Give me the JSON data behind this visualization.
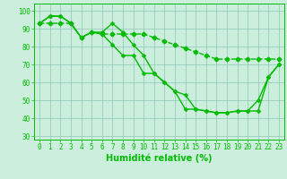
{
  "xlabel": "Humidité relative (%)",
  "xlim": [
    -0.5,
    23.5
  ],
  "ylim": [
    28,
    104
  ],
  "yticks": [
    30,
    40,
    50,
    60,
    70,
    80,
    90,
    100
  ],
  "xticks": [
    0,
    1,
    2,
    3,
    4,
    5,
    6,
    7,
    8,
    9,
    10,
    11,
    12,
    13,
    14,
    15,
    16,
    17,
    18,
    19,
    20,
    21,
    22,
    23
  ],
  "background_color": "#cceedd",
  "grid_color": "#99ccbb",
  "line_color": "#00bb00",
  "line1": [
    93,
    97,
    97,
    93,
    85,
    88,
    88,
    93,
    88,
    81,
    75,
    65,
    60,
    55,
    53,
    45,
    44,
    43,
    43,
    44,
    44,
    44,
    63,
    70
  ],
  "line2": [
    93,
    97,
    97,
    93,
    85,
    88,
    87,
    81,
    75,
    75,
    65,
    65,
    60,
    55,
    45,
    45,
    44,
    43,
    43,
    44,
    44,
    50,
    63,
    70
  ],
  "line3": [
    93,
    93,
    93,
    93,
    85,
    88,
    87,
    87,
    87,
    87,
    87,
    85,
    83,
    81,
    79,
    77,
    75,
    73,
    73,
    73,
    73,
    73,
    73,
    73
  ],
  "xlabel_fontsize": 7,
  "tick_fontsize": 5.5,
  "line_width": 1.0,
  "marker_size": 2.5
}
